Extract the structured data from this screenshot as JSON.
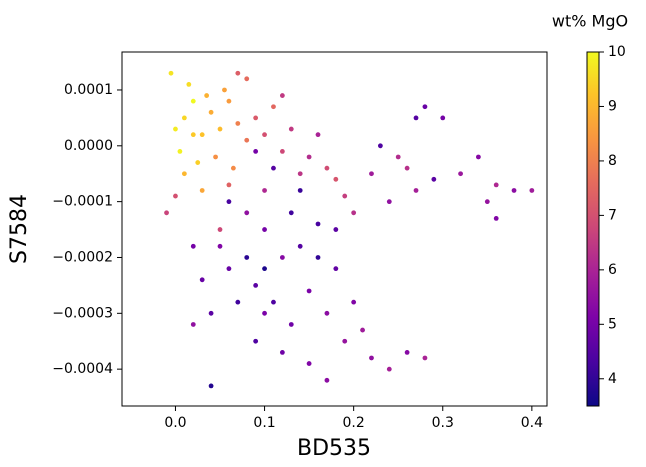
{
  "chart_data": {
    "type": "scatter",
    "x_label": "BD535",
    "y_label": "S7584",
    "colorbar_label": "wt% MgO",
    "colormap": "plasma",
    "xlim": [
      -0.06,
      0.417
    ],
    "ylim": [
      -0.000466,
      0.000168
    ],
    "clim": [
      3.5,
      10
    ],
    "xticks": [
      {
        "value": 0,
        "label": "0.0"
      },
      0.1,
      0.2,
      0.3,
      0.4
    ],
    "yticks": [
      {
        "value": 0.0001,
        "label": "0.0001"
      },
      {
        "value": 0,
        "label": "0.0000"
      },
      {
        "value": -0.0001,
        "label": "−0.0001"
      },
      {
        "value": -0.0002,
        "label": "−0.0002"
      },
      {
        "value": -0.0003,
        "label": "−0.0003"
      },
      {
        "value": -0.0004,
        "label": "−0.0004"
      }
    ],
    "cticks": [
      4,
      5,
      6,
      7,
      8,
      9,
      10
    ],
    "x": [
      0.0,
      0.01,
      0.02,
      0.03,
      0.005,
      0.04,
      0.05,
      0.015,
      0.06,
      -0.005,
      0.025,
      0.035,
      0.045,
      0.07,
      0.01,
      0.055,
      0.08,
      0.02,
      0.065,
      0.03,
      0.09,
      0.1,
      0.12,
      0.11,
      0.13,
      0.08,
      0.07,
      0.15,
      0.17,
      0.18,
      0.14,
      0.06,
      -0.01,
      0.0,
      0.19,
      0.16,
      0.2,
      0.1,
      0.05,
      0.12,
      0.05,
      0.06,
      0.08,
      0.09,
      0.1,
      0.11,
      0.12,
      0.13,
      0.14,
      0.15,
      0.16,
      0.17,
      0.18,
      0.19,
      0.2,
      0.21,
      0.22,
      0.24,
      0.26,
      0.28,
      0.07,
      0.03,
      0.02,
      0.04,
      0.02,
      0.09,
      0.1,
      0.12,
      0.15,
      0.17,
      0.04,
      0.14,
      0.11,
      0.09,
      0.13,
      0.16,
      0.08,
      0.06,
      0.18,
      0.1,
      0.22,
      0.24,
      0.25,
      0.27,
      0.28,
      0.3,
      0.27,
      0.29,
      0.32,
      0.34,
      0.35,
      0.36,
      0.38,
      0.4,
      0.36,
      0.23,
      0.26
    ],
    "values": [
      3e-05,
      5e-05,
      8e-05,
      2e-05,
      -1e-05,
      6e-05,
      3e-05,
      0.00011,
      8e-05,
      0.00013,
      -3e-05,
      9e-05,
      -2e-05,
      4e-05,
      -5e-05,
      0.0001,
      1e-05,
      2e-05,
      -4e-05,
      -8e-05,
      5e-05,
      2e-05,
      -1e-05,
      7e-05,
      3e-05,
      0.00012,
      0.00013,
      -2e-05,
      -4e-05,
      -6e-05,
      -5e-05,
      -7e-05,
      -0.00012,
      -9e-05,
      -9e-05,
      2e-05,
      -0.00012,
      -8e-05,
      -0.00015,
      9e-05,
      -0.00018,
      -0.00022,
      -0.00012,
      -0.00025,
      -0.00015,
      -0.00028,
      -0.0002,
      -0.00032,
      -0.00018,
      -0.00026,
      -0.00014,
      -0.0003,
      -0.00022,
      -0.00035,
      -0.00028,
      -0.00033,
      -0.00038,
      -0.0004,
      -0.00037,
      -0.00038,
      -0.00028,
      -0.00024,
      -0.00018,
      -0.0003,
      -0.00032,
      -0.00035,
      -0.0003,
      -0.00037,
      -0.00039,
      -0.00042,
      -0.00043,
      -8e-05,
      -4e-05,
      -1e-05,
      -0.00012,
      -0.0002,
      -0.0002,
      -0.0001,
      -0.00015,
      -0.00022,
      -5e-05,
      -0.0001,
      -2e-05,
      5e-05,
      7e-05,
      5e-05,
      -8e-05,
      -6e-05,
      -5e-05,
      -2e-05,
      -0.0001,
      -7e-05,
      -8e-05,
      -8e-05,
      -0.00013,
      0.0,
      -4e-05
    ],
    "color_values": [
      9.8,
      9.5,
      10,
      9.2,
      9.9,
      8.8,
      9.1,
      9.6,
      8.5,
      9.7,
      9.4,
      8.9,
      8.3,
      8.0,
      9.0,
      8.6,
      7.8,
      9.3,
      8.2,
      8.7,
      7.2,
      7.0,
      6.8,
      7.5,
      6.5,
      7.6,
      7.3,
      6.2,
      6.9,
      7.1,
      6.4,
      7.4,
      6.7,
      7.0,
      6.6,
      6.0,
      6.3,
      6.1,
      6.8,
      6.5,
      5.2,
      4.8,
      5.5,
      4.6,
      5.0,
      4.4,
      5.3,
      4.9,
      4.5,
      5.1,
      4.3,
      5.4,
      4.7,
      5.6,
      5.2,
      5.8,
      5.5,
      5.9,
      5.3,
      6.0,
      4.2,
      4.8,
      5.0,
      4.6,
      5.5,
      4.4,
      5.1,
      4.9,
      5.2,
      5.4,
      3.8,
      4.1,
      4.5,
      5.0,
      4.2,
      4.0,
      3.9,
      4.3,
      4.6,
      3.7,
      5.8,
      5.5,
      6.2,
      4.5,
      4.8,
      5.0,
      5.9,
      4.6,
      5.7,
      5.3,
      5.6,
      6.1,
      5.4,
      5.8,
      5.2,
      4.4,
      6.3
    ]
  }
}
